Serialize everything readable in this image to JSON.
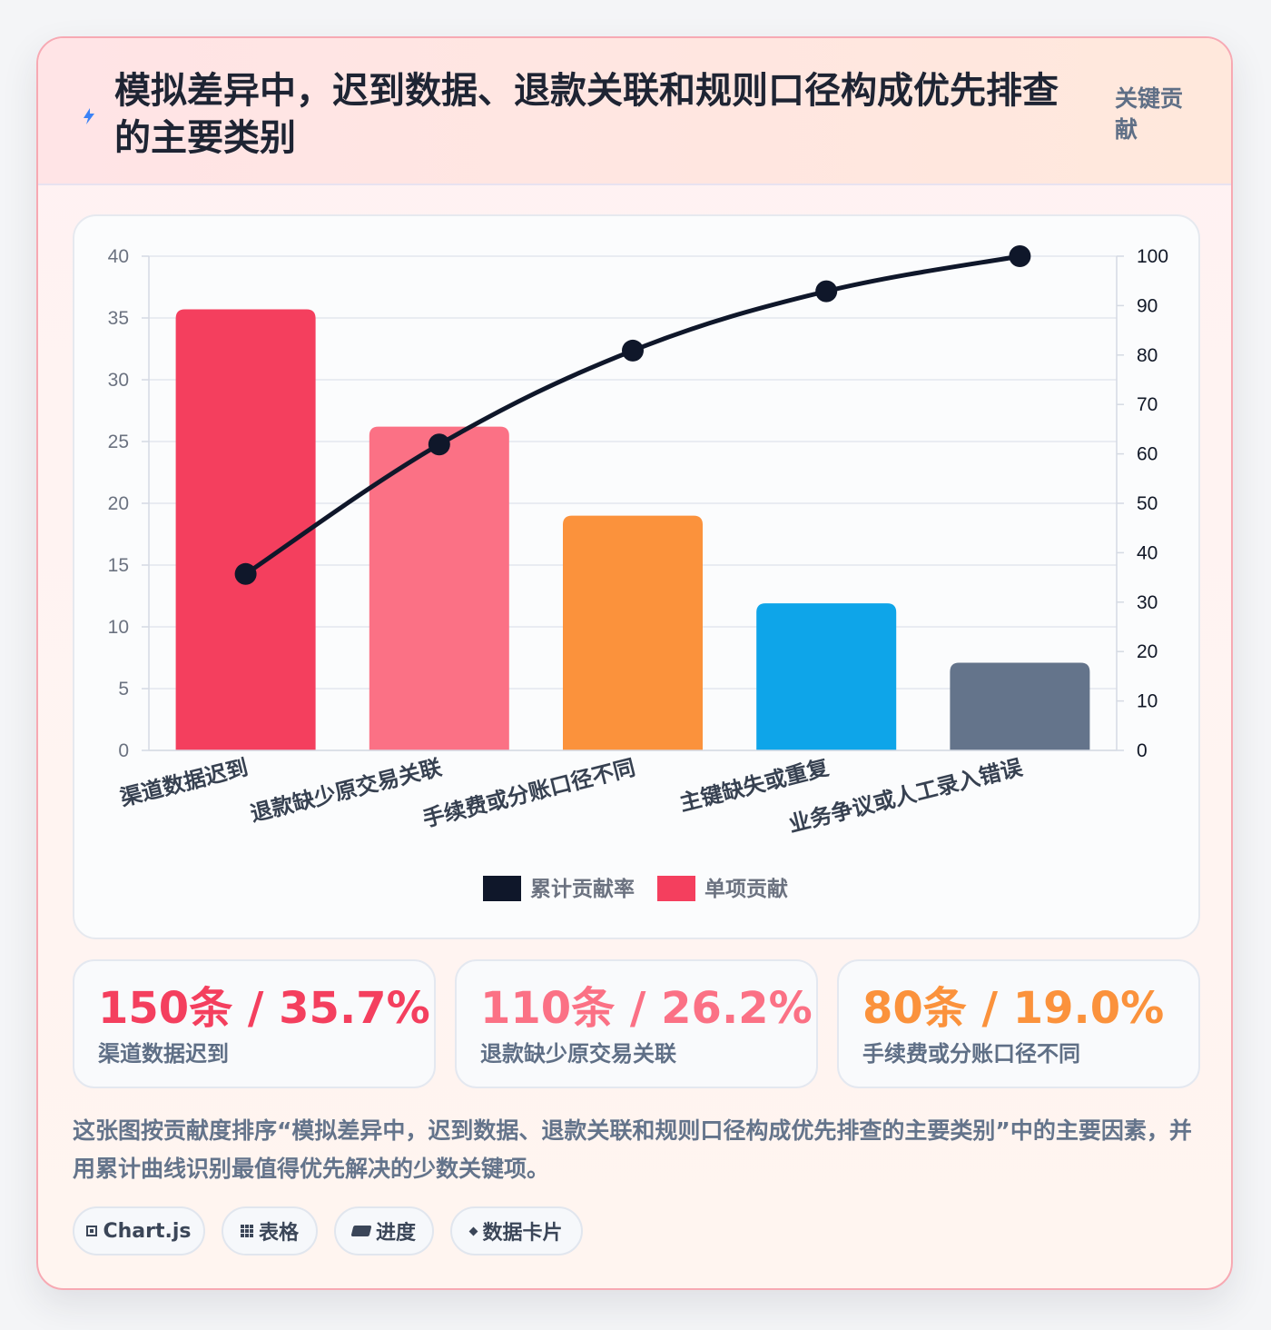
{
  "header": {
    "title": "模拟差异中，迟到数据、退款关联和规则口径构成优先排查的主要类别",
    "badge": "关键贡献",
    "icon": "bolt-icon"
  },
  "chart_data": {
    "type": "bar",
    "categories": [
      "渠道数据迟到",
      "退款缺少原交易关联",
      "手续费或分账口径不同",
      "主键缺失或重复",
      "业务争议或人工录入错误"
    ],
    "series": [
      {
        "name": "单项贡献",
        "kind": "bar",
        "axis": "left",
        "values": [
          35.7,
          26.2,
          19.0,
          11.9,
          7.1
        ],
        "colors": [
          "#f43f5e",
          "#fb7185",
          "#fb923c",
          "#0ea5e9",
          "#64748b"
        ]
      },
      {
        "name": "累计贡献率",
        "kind": "line",
        "axis": "right",
        "values": [
          35.7,
          61.9,
          80.9,
          92.9,
          100
        ],
        "color": "#0f172a"
      }
    ],
    "ylim": [
      0,
      40
    ],
    "y_ticks": [
      0,
      5,
      10,
      15,
      20,
      25,
      30,
      35,
      40
    ],
    "y2lim": [
      0,
      100
    ],
    "y2_ticks": [
      0,
      10,
      20,
      30,
      40,
      50,
      60,
      70,
      80,
      90,
      100
    ],
    "legend": [
      "累计贡献率",
      "单项贡献"
    ],
    "legend_position": "bottom",
    "grid": true
  },
  "stats": [
    {
      "value": "150条 / 35.7%",
      "label": "渠道数据迟到",
      "color": "#f43f5e"
    },
    {
      "value": "110条 / 26.2%",
      "label": "退款缺少原交易关联",
      "color": "#fb7185"
    },
    {
      "value": "80条 / 19.0%",
      "label": "手续费或分账口径不同",
      "color": "#fb923c"
    }
  ],
  "description": "这张图按贡献度排序“模拟差异中，迟到数据、退款关联和规则口径构成优先排查的主要类别”中的主要因素，并用累计曲线识别最值得优先解决的少数关键项。",
  "chips": [
    {
      "label": "Chart.js",
      "icon": "chart-square-icon"
    },
    {
      "label": "表格",
      "icon": "grid-icon"
    },
    {
      "label": "进度",
      "icon": "progress-bar-icon"
    },
    {
      "label": "数据卡片",
      "icon": "diamond-icon"
    }
  ]
}
